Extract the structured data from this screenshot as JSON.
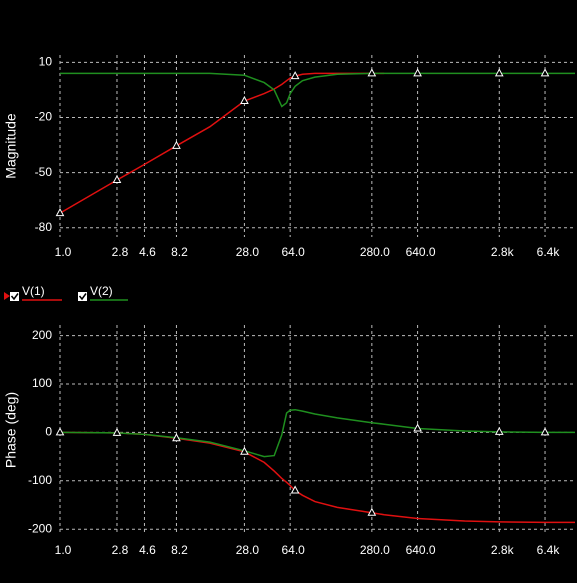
{
  "chart_data": [
    {
      "type": "line",
      "y_label": "Magnitude",
      "log_x": true,
      "grid": true,
      "x": [
        1,
        2.8,
        4.6,
        8.2,
        15,
        28,
        40,
        48,
        55,
        60,
        64,
        70,
        80,
        100,
        150,
        280,
        350,
        640,
        1500,
        2800,
        6400,
        11000
      ],
      "xlim": [
        1,
        11000
      ],
      "xticks": [
        {
          "value": 1,
          "label": "1.0"
        },
        2.8,
        4.6,
        8.2,
        {
          "value": 28,
          "label": "28.0"
        },
        {
          "value": 64,
          "label": "64.0"
        },
        {
          "value": 280,
          "label": "280.0"
        },
        {
          "value": 640,
          "label": "640.0"
        },
        {
          "value": 2800,
          "label": "2.8k"
        },
        {
          "value": 6400,
          "label": "6.4k"
        }
      ],
      "ylim": [
        -85,
        14
      ],
      "yticks": [
        10,
        -20,
        -50,
        -80
      ],
      "series": [
        {
          "name": "V(1)",
          "color": "#e01010",
          "values": [
            -72,
            -54,
            -45.5,
            -35.4,
            -25,
            -11,
            -7,
            -4.5,
            -2,
            0,
            1.5,
            2.5,
            3.5,
            4,
            4,
            4,
            4,
            null,
            null,
            null,
            null,
            null
          ]
        },
        {
          "name": "V(2)",
          "color": "#1f8f1f",
          "values": [
            4,
            4,
            4,
            4,
            4,
            3,
            -1,
            -5,
            -14,
            -12,
            -7,
            -3,
            0,
            2,
            3.5,
            4,
            4,
            4,
            4,
            4,
            4,
            4
          ]
        }
      ]
    },
    {
      "type": "line",
      "y_label": "Phase (deg)",
      "log_x": true,
      "grid": true,
      "x": [
        1,
        2.8,
        4.6,
        8.2,
        15,
        28,
        40,
        48,
        55,
        60,
        64,
        70,
        80,
        100,
        150,
        280,
        350,
        640,
        1500,
        2800,
        6400,
        11000
      ],
      "xlim": [
        1,
        11000
      ],
      "xticks": [
        {
          "value": 1,
          "label": "1.0"
        },
        2.8,
        4.6,
        8.2,
        {
          "value": 28,
          "label": "28.0"
        },
        {
          "value": 64,
          "label": "64.0"
        },
        {
          "value": 280,
          "label": "280.0"
        },
        {
          "value": 640,
          "label": "640.0"
        },
        {
          "value": 2800,
          "label": "2.8k"
        },
        {
          "value": 6400,
          "label": "6.4k"
        }
      ],
      "ylim": [
        -212,
        222
      ],
      "yticks": [
        200,
        100,
        0,
        -100,
        -200
      ],
      "series": [
        {
          "color": "#e01010",
          "values": [
            0,
            -1,
            -4,
            -12,
            -22,
            -40,
            -62,
            -80,
            -95,
            -103,
            -110,
            -120,
            -130,
            -143,
            -155,
            -166,
            -170,
            -178,
            -183,
            -185,
            -186,
            -186
          ]
        },
        {
          "color": "#1f8f1f",
          "values": [
            0,
            -1,
            -4,
            -11,
            -20,
            -38,
            -50,
            -48,
            -5,
            40,
            46,
            47,
            44,
            38,
            30,
            20,
            17,
            8,
            3,
            1,
            0,
            0
          ]
        }
      ]
    }
  ]
}
